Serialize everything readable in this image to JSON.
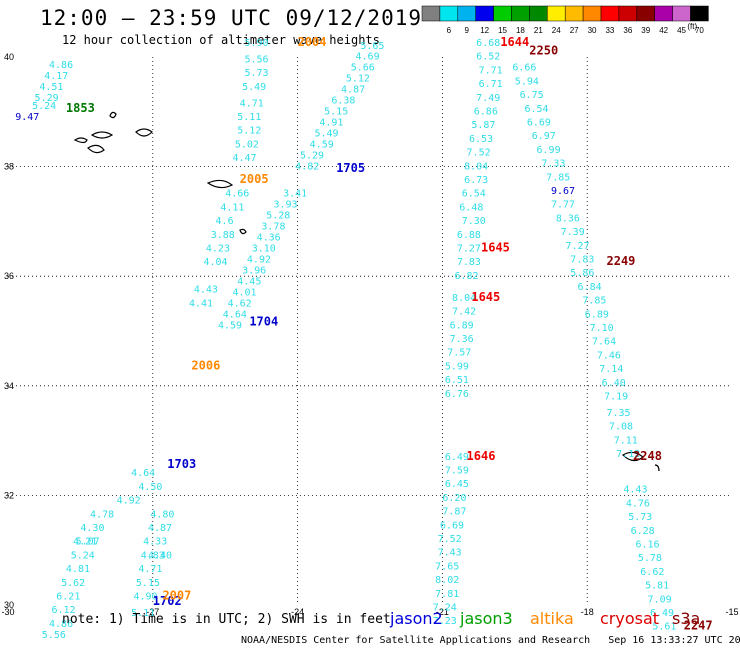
{
  "header": {
    "title": "12:00 – 23:59 UTC 09/12/2019",
    "subtitle": "12 hour collection of altimeter wave heights"
  },
  "legend": {
    "unit": "(ft)",
    "bins": [
      {
        "label": "3",
        "color": "#808080"
      },
      {
        "label": "6",
        "color": "#00e5ee"
      },
      {
        "label": "9",
        "color": "#00b2ee"
      },
      {
        "label": "12",
        "color": "#0000ee"
      },
      {
        "label": "15",
        "color": "#00cc00"
      },
      {
        "label": "18",
        "color": "#00a000"
      },
      {
        "label": "21",
        "color": "#008800"
      },
      {
        "label": "24",
        "color": "#ffee00"
      },
      {
        "label": "27",
        "color": "#ffbb00"
      },
      {
        "label": "30",
        "color": "#ff8800"
      },
      {
        "label": "33",
        "color": "#ff0000"
      },
      {
        "label": "36",
        "color": "#cc0000"
      },
      {
        "label": "39",
        "color": "#880000"
      },
      {
        "label": "42",
        "color": "#aa00aa"
      },
      {
        "label": "45",
        "color": "#cc66cc"
      },
      {
        "label": "70",
        "color": "#000000"
      }
    ]
  },
  "chart_data": {
    "type": "scatter",
    "lon_ticks": [
      "-30",
      "-27",
      "-24",
      "-21",
      "-18",
      "-15"
    ],
    "lat_ticks": [
      "30",
      "32",
      "34",
      "36",
      "38",
      "40"
    ],
    "xlim": [
      -30,
      -15
    ],
    "ylim": [
      30,
      40
    ],
    "grid": true,
    "tracks": [
      {
        "satellite": "jason2",
        "color": "#2fdde8",
        "labels": [
          {
            "text": "1853",
            "lat": 39.0,
            "lon": -28.8,
            "color": "#007700"
          },
          {
            "text": "1705",
            "lat": 37.9,
            "lon": -23.2,
            "color": "#0000cc"
          },
          {
            "text": "1704",
            "lat": 35.1,
            "lon": -25.0,
            "color": "#0000cc"
          },
          {
            "text": "1703",
            "lat": 32.5,
            "lon": -26.7,
            "color": "#0000cc"
          },
          {
            "text": "1702",
            "lat": 30.0,
            "lon": -27.0,
            "color": "#0000cc"
          }
        ]
      }
    ],
    "points": [
      {
        "v": "4.86",
        "lat": 39.8,
        "lon": -29.15
      },
      {
        "v": "4.17",
        "lat": 39.6,
        "lon": -29.25
      },
      {
        "v": "4.51",
        "lat": 39.4,
        "lon": -29.35
      },
      {
        "v": "5.29",
        "lat": 39.2,
        "lon": -29.45
      },
      {
        "v": "5.24",
        "lat": 39.05,
        "lon": -29.5
      },
      {
        "v": "9.47",
        "lat": 38.85,
        "lon": -29.85
      },
      {
        "v": "5.90",
        "lat": 40.2,
        "lon": -25.1
      },
      {
        "v": "5.56",
        "lat": 39.9,
        "lon": -25.1
      },
      {
        "v": "5.73",
        "lat": 39.65,
        "lon": -25.1
      },
      {
        "v": "5.49",
        "lat": 39.4,
        "lon": -25.15
      },
      {
        "v": "4.71",
        "lat": 39.1,
        "lon": -25.2
      },
      {
        "v": "5.11",
        "lat": 38.85,
        "lon": -25.25
      },
      {
        "v": "5.12",
        "lat": 38.6,
        "lon": -25.25
      },
      {
        "v": "5.02",
        "lat": 38.35,
        "lon": -25.3
      },
      {
        "v": "4.47",
        "lat": 38.1,
        "lon": -25.35
      },
      {
        "v": "5.65",
        "lat": 40.15,
        "lon": -22.7
      },
      {
        "v": "4.69",
        "lat": 39.95,
        "lon": -22.8
      },
      {
        "v": "5.66",
        "lat": 39.75,
        "lon": -22.9
      },
      {
        "v": "5.12",
        "lat": 39.55,
        "lon": -23.0
      },
      {
        "v": "4.87",
        "lat": 39.35,
        "lon": -23.1
      },
      {
        "v": "6.38",
        "lat": 39.15,
        "lon": -23.3
      },
      {
        "v": "5.15",
        "lat": 38.95,
        "lon": -23.45
      },
      {
        "v": "4.91",
        "lat": 38.75,
        "lon": -23.55
      },
      {
        "v": "5.49",
        "lat": 38.55,
        "lon": -23.65
      },
      {
        "v": "4.59",
        "lat": 38.35,
        "lon": -23.75
      },
      {
        "v": "5.29",
        "lat": 38.15,
        "lon": -23.95
      },
      {
        "v": "4.82",
        "lat": 37.95,
        "lon": -24.05
      },
      {
        "v": "6.68",
        "lat": 40.2,
        "lon": -20.3
      },
      {
        "v": "6.52",
        "lat": 39.95,
        "lon": -20.3
      },
      {
        "v": "7.71",
        "lat": 39.7,
        "lon": -20.25
      },
      {
        "v": "6.71",
        "lat": 39.45,
        "lon": -20.25
      },
      {
        "v": "7.49",
        "lat": 39.2,
        "lon": -20.3
      },
      {
        "v": "6.86",
        "lat": 38.95,
        "lon": -20.35
      },
      {
        "v": "5.87",
        "lat": 38.7,
        "lon": -20.4
      },
      {
        "v": "6.53",
        "lat": 38.45,
        "lon": -20.45
      },
      {
        "v": "7.52",
        "lat": 38.2,
        "lon": -20.5
      },
      {
        "v": "8.04",
        "lat": 37.95,
        "lon": -20.55
      },
      {
        "v": "6.73",
        "lat": 37.7,
        "lon": -20.55
      },
      {
        "v": "6.54",
        "lat": 37.45,
        "lon": -20.6
      },
      {
        "v": "6.48",
        "lat": 37.2,
        "lon": -20.65
      },
      {
        "v": "7.30",
        "lat": 36.95,
        "lon": -20.6
      },
      {
        "v": "6.88",
        "lat": 36.7,
        "lon": -20.7
      },
      {
        "v": "7.27",
        "lat": 36.45,
        "lon": -20.7
      },
      {
        "v": "7.83",
        "lat": 36.2,
        "lon": -20.7
      },
      {
        "v": "6.82",
        "lat": 35.95,
        "lon": -20.75
      },
      {
        "v": "8.04",
        "lat": 35.55,
        "lon": -20.8
      },
      {
        "v": "7.42",
        "lat": 35.3,
        "lon": -20.8
      },
      {
        "v": "6.89",
        "lat": 35.05,
        "lon": -20.85
      },
      {
        "v": "7.36",
        "lat": 34.8,
        "lon": -20.85
      },
      {
        "v": "7.57",
        "lat": 34.55,
        "lon": -20.9
      },
      {
        "v": "5.99",
        "lat": 34.3,
        "lon": -20.95
      },
      {
        "v": "6.51",
        "lat": 34.05,
        "lon": -20.95
      },
      {
        "v": "6.76",
        "lat": 33.8,
        "lon": -20.95
      },
      {
        "v": "6.66",
        "lat": 39.75,
        "lon": -19.55
      },
      {
        "v": "5.94",
        "lat": 39.5,
        "lon": -19.5
      },
      {
        "v": "6.75",
        "lat": 39.25,
        "lon": -19.4
      },
      {
        "v": "6.54",
        "lat": 39.0,
        "lon": -19.3
      },
      {
        "v": "6.69",
        "lat": 38.75,
        "lon": -19.25
      },
      {
        "v": "6.97",
        "lat": 38.5,
        "lon": -19.15
      },
      {
        "v": "6.99",
        "lat": 38.25,
        "lon": -19.05
      },
      {
        "v": "7.33",
        "lat": 38.0,
        "lon": -18.95
      },
      {
        "v": "7.85",
        "lat": 37.75,
        "lon": -18.85
      },
      {
        "v": "9.67",
        "lat": 37.5,
        "lon": -18.75
      },
      {
        "v": "7.77",
        "lat": 37.25,
        "lon": -18.75
      },
      {
        "v": "8.36",
        "lat": 37.0,
        "lon": -18.65
      },
      {
        "v": "7.39",
        "lat": 36.75,
        "lon": -18.55
      },
      {
        "v": "7.27",
        "lat": 36.5,
        "lon": -18.45
      },
      {
        "v": "7.83",
        "lat": 36.25,
        "lon": -18.35
      },
      {
        "v": "5.86",
        "lat": 36.0,
        "lon": -18.35
      },
      {
        "v": "6.84",
        "lat": 35.75,
        "lon": -18.2
      },
      {
        "v": "7.85",
        "lat": 35.5,
        "lon": -18.1
      },
      {
        "v": "6.89",
        "lat": 35.25,
        "lon": -18.05
      },
      {
        "v": "7.10",
        "lat": 35.0,
        "lon": -17.95
      },
      {
        "v": "7.64",
        "lat": 34.75,
        "lon": -17.9
      },
      {
        "v": "7.46",
        "lat": 34.5,
        "lon": -17.8
      },
      {
        "v": "7.14",
        "lat": 34.25,
        "lon": -17.75
      },
      {
        "v": "6.40",
        "lat": 34.0,
        "lon": -17.7
      },
      {
        "v": "7.19",
        "lat": 33.75,
        "lon": -17.65
      },
      {
        "v": "7.35",
        "lat": 33.45,
        "lon": -17.6
      },
      {
        "v": "7.08",
        "lat": 33.2,
        "lon": -17.55
      },
      {
        "v": "7.11",
        "lat": 32.95,
        "lon": -17.45
      },
      {
        "v": "7.12",
        "lat": 32.7,
        "lon": -17.4
      },
      {
        "v": "4.43",
        "lat": 32.05,
        "lon": -17.25
      },
      {
        "v": "4.76",
        "lat": 31.8,
        "lon": -17.2
      },
      {
        "v": "5.73",
        "lat": 31.55,
        "lon": -17.15
      },
      {
        "v": "6.28",
        "lat": 31.3,
        "lon": -17.1
      },
      {
        "v": "6.16",
        "lat": 31.05,
        "lon": -17.0
      },
      {
        "v": "5.78",
        "lat": 30.8,
        "lon": -16.95
      },
      {
        "v": "6.62",
        "lat": 30.55,
        "lon": -16.9
      },
      {
        "v": "5.81",
        "lat": 30.3,
        "lon": -16.8
      },
      {
        "v": "7.09",
        "lat": 30.05,
        "lon": -16.75
      },
      {
        "v": "6.49",
        "lat": 29.8,
        "lon": -16.7
      },
      {
        "v": "5.61",
        "lat": 29.55,
        "lon": -16.65
      },
      {
        "v": "6.49",
        "lat": 32.65,
        "lon": -20.95
      },
      {
        "v": "7.59",
        "lat": 32.4,
        "lon": -20.95
      },
      {
        "v": "6.45",
        "lat": 32.15,
        "lon": -20.95
      },
      {
        "v": "6.20",
        "lat": 31.9,
        "lon": -21.0
      },
      {
        "v": "7.87",
        "lat": 31.65,
        "lon": -21.0
      },
      {
        "v": "6.69",
        "lat": 31.4,
        "lon": -21.05
      },
      {
        "v": "7.52",
        "lat": 31.15,
        "lon": -21.1
      },
      {
        "v": "7.43",
        "lat": 30.9,
        "lon": -21.1
      },
      {
        "v": "7.65",
        "lat": 30.65,
        "lon": -21.15
      },
      {
        "v": "8.02",
        "lat": 30.4,
        "lon": -21.15
      },
      {
        "v": "7.81",
        "lat": 30.15,
        "lon": -21.15
      },
      {
        "v": "7.24",
        "lat": 29.9,
        "lon": -21.2
      },
      {
        "v": "7.23",
        "lat": 29.65,
        "lon": -21.2
      },
      {
        "v": "4.66",
        "lat": 37.45,
        "lon": -25.5
      },
      {
        "v": "4.11",
        "lat": 37.2,
        "lon": -25.6
      },
      {
        "v": "4.6",
        "lat": 36.95,
        "lon": -25.7
      },
      {
        "v": "3.88",
        "lat": 36.7,
        "lon": -25.8
      },
      {
        "v": "4.23",
        "lat": 36.45,
        "lon": -25.9
      },
      {
        "v": "4.04",
        "lat": 36.2,
        "lon": -25.95
      },
      {
        "v": "4.43",
        "lat": 35.7,
        "lon": -26.15
      },
      {
        "v": "4.41",
        "lat": 35.45,
        "lon": -26.25
      },
      {
        "v": "4.40",
        "lat": 30.85,
        "lon": -27.1
      },
      {
        "v": "3.41",
        "lat": 37.45,
        "lon": -24.3
      },
      {
        "v": "3.93",
        "lat": 37.25,
        "lon": -24.5
      },
      {
        "v": "5.28",
        "lat": 37.05,
        "lon": -24.65
      },
      {
        "v": "3.78",
        "lat": 36.85,
        "lon": -24.75
      },
      {
        "v": "4.36",
        "lat": 36.65,
        "lon": -24.85
      },
      {
        "v": "3.10",
        "lat": 36.45,
        "lon": -24.95
      },
      {
        "v": "4.92",
        "lat": 36.25,
        "lon": -25.05
      },
      {
        "v": "3.96",
        "lat": 36.05,
        "lon": -25.15
      },
      {
        "v": "4.45",
        "lat": 35.85,
        "lon": -25.25
      },
      {
        "v": "4.01",
        "lat": 35.65,
        "lon": -25.35
      },
      {
        "v": "4.62",
        "lat": 35.45,
        "lon": -25.45
      },
      {
        "v": "4.64",
        "lat": 35.25,
        "lon": -25.55
      },
      {
        "v": "4.59",
        "lat": 35.05,
        "lon": -25.65
      },
      {
        "v": "4.30",
        "lat": 31.35,
        "lon": -28.5
      },
      {
        "v": "5.07",
        "lat": 31.1,
        "lon": -28.6
      },
      {
        "v": "5.24",
        "lat": 30.85,
        "lon": -28.7
      },
      {
        "v": "4.81",
        "lat": 30.6,
        "lon": -28.8
      },
      {
        "v": "5.62",
        "lat": 30.35,
        "lon": -28.9
      },
      {
        "v": "6.21",
        "lat": 30.1,
        "lon": -29.0
      },
      {
        "v": "6.12",
        "lat": 29.85,
        "lon": -29.1
      },
      {
        "v": "4.86",
        "lat": 29.6,
        "lon": -29.15
      },
      {
        "v": "5.56",
        "lat": 29.4,
        "lon": -29.3
      },
      {
        "v": "4.33",
        "lat": 31.1,
        "lon": -27.2
      },
      {
        "v": "4.83",
        "lat": 30.85,
        "lon": -27.25
      },
      {
        "v": "4.71",
        "lat": 30.6,
        "lon": -27.3
      },
      {
        "v": "5.15",
        "lat": 30.35,
        "lon": -27.35
      },
      {
        "v": "4.90",
        "lat": 30.1,
        "lon": -27.4
      },
      {
        "v": "5.11",
        "lat": 29.8,
        "lon": -27.45
      },
      {
        "v": "4.87",
        "lat": 31.35,
        "lon": -27.1
      },
      {
        "v": "4.80",
        "lat": 31.6,
        "lon": -27.05
      },
      {
        "v": "4.50",
        "lat": 32.1,
        "lon": -27.3
      },
      {
        "v": "4.64",
        "lat": 32.35,
        "lon": -27.45
      },
      {
        "v": "4.92",
        "lat": 31.85,
        "lon": -27.75
      },
      {
        "v": "4.78",
        "lat": 31.6,
        "lon": -28.3
      },
      {
        "v": "4.21",
        "lat": 31.1,
        "lon": -28.65
      }
    ],
    "pass_labels": [
      {
        "text": "2004",
        "lat": 40.2,
        "lon": -24.0,
        "color": "#ff8800"
      },
      {
        "text": "2005",
        "lat": 37.7,
        "lon": -25.2,
        "color": "#ff8800"
      },
      {
        "text": "2006",
        "lat": 34.3,
        "lon": -26.2,
        "color": "#ff8800"
      },
      {
        "text": "2007",
        "lat": 30.1,
        "lon": -26.8,
        "color": "#ff8800"
      },
      {
        "text": "1644",
        "lat": 40.2,
        "lon": -19.8,
        "color": "#ee0000"
      },
      {
        "text": "2250",
        "lat": 40.05,
        "lon": -19.2,
        "color": "#880000"
      },
      {
        "text": "1645",
        "lat": 36.45,
        "lon": -20.2,
        "color": "#ee0000"
      },
      {
        "text": "1645",
        "lat": 35.55,
        "lon": -20.4,
        "color": "#ee0000"
      },
      {
        "text": "2249",
        "lat": 36.2,
        "lon": -17.6,
        "color": "#880000"
      },
      {
        "text": "1646",
        "lat": 32.65,
        "lon": -20.5,
        "color": "#ee0000"
      },
      {
        "text": "2248",
        "lat": 32.65,
        "lon": -17.05,
        "color": "#880000"
      },
      {
        "text": "2247",
        "lat": 29.55,
        "lon": -16.0,
        "color": "#880000"
      }
    ]
  },
  "note": "note: 1) Time is in UTC; 2) SWH is in feet",
  "satellites": [
    {
      "name": "jason2",
      "color": "#0000dd"
    },
    {
      "name": "jason3",
      "color": "#00a000"
    },
    {
      "name": "altika",
      "color": "#ff8800"
    },
    {
      "name": "cryosat",
      "color": "#dd0000"
    },
    {
      "name": "s3a",
      "color": "#880000"
    }
  ],
  "footer": {
    "org": "NOAA/NESDIS Center for Satellite Applications and Research",
    "timestamp": "Sep 16 13:33:27 UTC 2019"
  }
}
